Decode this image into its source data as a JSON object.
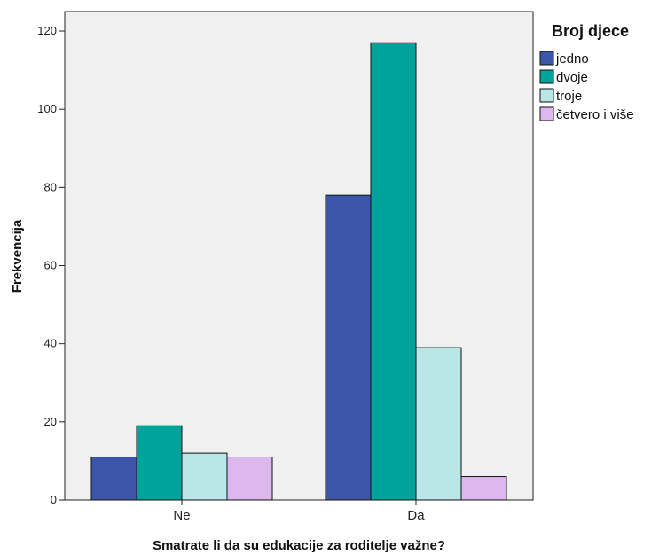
{
  "chart_data": {
    "type": "bar",
    "categories": [
      "Ne",
      "Da"
    ],
    "series": [
      {
        "name": "jedno",
        "values": [
          11,
          78
        ]
      },
      {
        "name": "dvoje",
        "values": [
          19,
          117
        ]
      },
      {
        "name": "troje",
        "values": [
          12,
          39
        ]
      },
      {
        "name": "četvero i više",
        "values": [
          11,
          6
        ]
      }
    ],
    "colors": [
      "#3b56a8",
      "#00a39b",
      "#b9e6e6",
      "#dcb8ee"
    ],
    "xlabel": "Smatrate li da su edukacije za roditelje važne?",
    "ylabel": "Frekvencija",
    "legend_title": "Broj djece",
    "legend_position": "right",
    "yticks": [
      0,
      20,
      40,
      60,
      80,
      100,
      120
    ],
    "ylim": [
      0,
      125
    ],
    "plot_background": "#f0f0f0",
    "grid": false
  }
}
